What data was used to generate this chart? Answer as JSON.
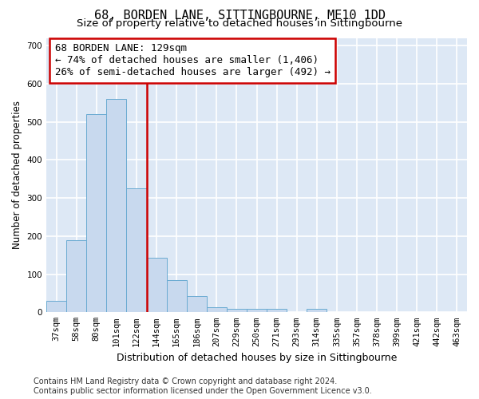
{
  "title": "68, BORDEN LANE, SITTINGBOURNE, ME10 1DD",
  "subtitle": "Size of property relative to detached houses in Sittingbourne",
  "xlabel": "Distribution of detached houses by size in Sittingbourne",
  "ylabel": "Number of detached properties",
  "categories": [
    "37sqm",
    "58sqm",
    "80sqm",
    "101sqm",
    "122sqm",
    "144sqm",
    "165sqm",
    "186sqm",
    "207sqm",
    "229sqm",
    "250sqm",
    "271sqm",
    "293sqm",
    "314sqm",
    "335sqm",
    "357sqm",
    "378sqm",
    "399sqm",
    "421sqm",
    "442sqm",
    "463sqm"
  ],
  "values": [
    30,
    190,
    520,
    560,
    325,
    143,
    85,
    42,
    13,
    8,
    10,
    10,
    0,
    8,
    0,
    0,
    0,
    0,
    0,
    0,
    0
  ],
  "bar_color": "#c8d9ee",
  "bar_edgecolor": "#6aabd2",
  "vline_color": "#cc0000",
  "annotation_text": "68 BORDEN LANE: 129sqm\n← 74% of detached houses are smaller (1,406)\n26% of semi-detached houses are larger (492) →",
  "annotation_box_color": "white",
  "annotation_box_edgecolor": "#cc0000",
  "ylim": [
    0,
    720
  ],
  "yticks": [
    0,
    100,
    200,
    300,
    400,
    500,
    600,
    700
  ],
  "bg_color": "#dde8f5",
  "grid_color": "white",
  "footer": "Contains HM Land Registry data © Crown copyright and database right 2024.\nContains public sector information licensed under the Open Government Licence v3.0.",
  "title_fontsize": 11,
  "subtitle_fontsize": 9.5,
  "annotation_fontsize": 9,
  "tick_fontsize": 7.5,
  "ylabel_fontsize": 8.5,
  "xlabel_fontsize": 9,
  "footer_fontsize": 7
}
